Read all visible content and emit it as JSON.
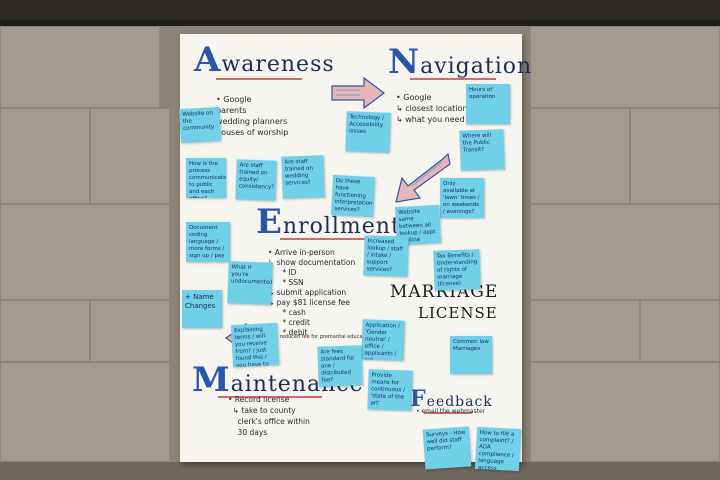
{
  "poster": {
    "awareness": {
      "cap": "A",
      "rest": "wareness",
      "items": [
        "• Google",
        "parents",
        "wedding planners",
        "houses of worship"
      ]
    },
    "navigation": {
      "cap": "N",
      "rest": "avigation",
      "items": [
        "• Google",
        "↳ closest location",
        "↳ what you need"
      ]
    },
    "enrollment": {
      "cap": "E",
      "rest": "nrollment",
      "items": [
        "• Arrive in-person",
        "↳ show documentation",
        "* ID",
        "* SSN",
        "↳ submit application",
        "↳ pay $81 license fee",
        "* cash",
        "* credit",
        "* debit",
        "↳ reduced fee for premarital education"
      ]
    },
    "marriage_license": {
      "line1": "MARRIAGE",
      "line2": "LICENSE"
    },
    "maintenance": {
      "cap": "M",
      "rest": "aintenance",
      "items": [
        "• Record license",
        "↳ take to county",
        "clerk's office within",
        "30 days"
      ]
    },
    "feedback": {
      "cap": "F",
      "rest": "eedback",
      "items": [
        "• email the webmaster"
      ]
    }
  },
  "notes": [
    {
      "id": "n1",
      "text": "Website on the community"
    },
    {
      "id": "n2",
      "text": "Technology / Accessibility issues"
    },
    {
      "id": "n3",
      "text": "Hours of operation"
    },
    {
      "id": "n4",
      "text": "Where will the Public Transit?"
    },
    {
      "id": "n5",
      "text": "How is the process communicated to public and each office?"
    },
    {
      "id": "n6",
      "text": "Are staff trained on equity/ consistency?"
    },
    {
      "id": "n7",
      "text": "Are staff trained on wedding services?"
    },
    {
      "id": "n8",
      "text": "Do these have functioning interpretation services?"
    },
    {
      "id": "n9",
      "text": "Only available at 'lawn' times / on weekends / evenings?"
    },
    {
      "id": "n10",
      "text": "Website same between all lookup / appt / online"
    },
    {
      "id": "n11",
      "text": "Increased lookup / staff / intake / support services?"
    },
    {
      "id": "n12",
      "text": "Document coding language / more forms / sign up / pay"
    },
    {
      "id": "n13",
      "text": "Tax Benefits / Understanding of rights of marriage (license)"
    },
    {
      "id": "n14",
      "text": "What if you're undocumented?"
    },
    {
      "id": "n15",
      "text": "+ Name Changes"
    },
    {
      "id": "n16",
      "text": "Explaining terms / will you receive from? / just found this / you have to submit / if you've done"
    },
    {
      "id": "n17",
      "text": "Application / 'Gender neutral' / office / applicants / not disruptive"
    },
    {
      "id": "n18",
      "text": "Common law Marriages"
    },
    {
      "id": "n19",
      "text": "Are fees standard for one / distributed fee?"
    },
    {
      "id": "n20",
      "text": "Provide means for continuous / 'state of the art'"
    },
    {
      "id": "n21",
      "text": "Surveys - How well did staff perform?"
    },
    {
      "id": "n22",
      "text": "How to file a complaint? / ADA compliance / language access"
    }
  ]
}
